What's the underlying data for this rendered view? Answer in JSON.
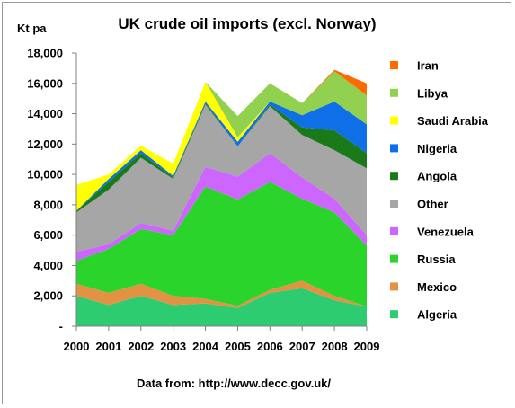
{
  "chart_data": {
    "type": "area",
    "stacked": true,
    "title": "UK crude oil imports (excl. Norway)",
    "ylabel": "Kt pa",
    "xlabel": "",
    "source": "Data from: http://www.decc.gov.uk/",
    "x": [
      "2000",
      "2001",
      "2002",
      "2003",
      "2004",
      "2005",
      "2006",
      "2007",
      "2008",
      "2009"
    ],
    "ylim": [
      0,
      18000
    ],
    "yticks": [
      0,
      2000,
      4000,
      6000,
      8000,
      10000,
      12000,
      14000,
      16000,
      18000
    ],
    "ytick_labels": [
      "-",
      "2,000",
      "4,000",
      "6,000",
      "8,000",
      "10,000",
      "12,000",
      "14,000",
      "16,000",
      "18,000"
    ],
    "legend_position": "right",
    "series": [
      {
        "name": "Algeria",
        "color": "#2ecc71",
        "values": [
          2000,
          1400,
          2000,
          1400,
          1500,
          1200,
          2200,
          2500,
          1700,
          1300
        ]
      },
      {
        "name": "Mexico",
        "color": "#e39143",
        "values": [
          800,
          800,
          800,
          600,
          300,
          150,
          200,
          500,
          300,
          0
        ]
      },
      {
        "name": "Russia",
        "color": "#2bd42b",
        "values": [
          1500,
          2900,
          3600,
          4000,
          7400,
          7000,
          7100,
          5400,
          5500,
          4000
        ]
      },
      {
        "name": "Venezuela",
        "color": "#cc66ff",
        "values": [
          600,
          300,
          400,
          300,
          1300,
          1500,
          1900,
          1400,
          900,
          700
        ]
      },
      {
        "name": "Other",
        "color": "#a6a6a6",
        "values": [
          2600,
          3600,
          4300,
          3400,
          4100,
          2000,
          3100,
          2800,
          3200,
          4400
        ]
      },
      {
        "name": "Angola",
        "color": "#1a7a1a",
        "values": [
          100,
          500,
          300,
          100,
          100,
          0,
          100,
          500,
          1300,
          1000
        ]
      },
      {
        "name": "Nigeria",
        "color": "#0f6fe6",
        "values": [
          0,
          200,
          200,
          100,
          100,
          300,
          200,
          800,
          1900,
          1900
        ]
      },
      {
        "name": "Saudi Arabia",
        "color": "#ffff00",
        "values": [
          1700,
          300,
          300,
          800,
          1300,
          300,
          0,
          0,
          0,
          0
        ]
      },
      {
        "name": "Libya",
        "color": "#92d050",
        "values": [
          0,
          0,
          0,
          0,
          0,
          1400,
          1200,
          800,
          2000,
          1900
        ]
      },
      {
        "name": "Iran",
        "color": "#ff6a00",
        "values": [
          0,
          0,
          0,
          0,
          0,
          0,
          0,
          0,
          100,
          800
        ]
      }
    ]
  }
}
